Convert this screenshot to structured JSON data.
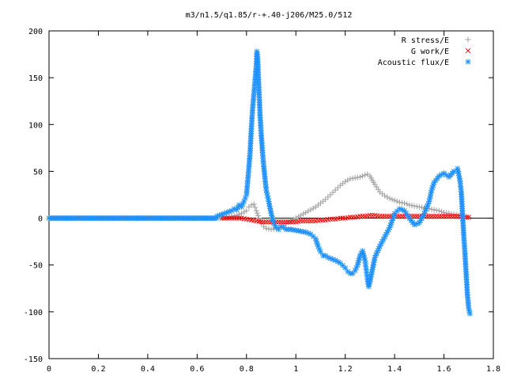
{
  "chart_data": {
    "type": "scatter",
    "title": "m3/n1.5/q1.85/r-+.40-j206/M25.0/512",
    "xlabel": "",
    "ylabel": "",
    "xlim": [
      0,
      1.8
    ],
    "ylim": [
      -150,
      200
    ],
    "x_ticks": [
      0,
      0.2,
      0.4,
      0.6,
      0.8,
      1,
      1.2,
      1.4,
      1.6,
      1.8
    ],
    "x_tick_labels": [
      "0",
      "0.2",
      "0.4",
      "0.6",
      "0.8",
      "1",
      "1.2",
      "1.4",
      "1.6",
      "1.8"
    ],
    "y_ticks": [
      -150,
      -100,
      -50,
      0,
      50,
      100,
      150,
      200
    ],
    "y_tick_labels": [
      "-150",
      "-100",
      "-50",
      "0",
      "50",
      "100",
      "150",
      "200"
    ],
    "grid": false,
    "legend_position": "top-right",
    "series": [
      {
        "name": "R stress/E",
        "marker": "plus",
        "color": "#a0a0a0",
        "points": [
          [
            0.7,
            0
          ],
          [
            0.72,
            1
          ],
          [
            0.74,
            2
          ],
          [
            0.76,
            3
          ],
          [
            0.78,
            5
          ],
          [
            0.8,
            8
          ],
          [
            0.81,
            12
          ],
          [
            0.82,
            14
          ],
          [
            0.83,
            15
          ],
          [
            0.84,
            8
          ],
          [
            0.85,
            0
          ],
          [
            0.86,
            -5
          ],
          [
            0.87,
            -9
          ],
          [
            0.88,
            -11
          ],
          [
            0.9,
            -12
          ],
          [
            0.92,
            -11
          ],
          [
            0.94,
            -9
          ],
          [
            0.96,
            -6
          ],
          [
            0.98,
            -3
          ],
          [
            1.0,
            0
          ],
          [
            1.02,
            3
          ],
          [
            1.04,
            6
          ],
          [
            1.06,
            9
          ],
          [
            1.08,
            12
          ],
          [
            1.1,
            16
          ],
          [
            1.12,
            20
          ],
          [
            1.14,
            25
          ],
          [
            1.16,
            30
          ],
          [
            1.18,
            35
          ],
          [
            1.2,
            39
          ],
          [
            1.22,
            42
          ],
          [
            1.24,
            43
          ],
          [
            1.26,
            44
          ],
          [
            1.28,
            46
          ],
          [
            1.29,
            47
          ],
          [
            1.3,
            45
          ],
          [
            1.32,
            36
          ],
          [
            1.34,
            28
          ],
          [
            1.36,
            24
          ],
          [
            1.38,
            21
          ],
          [
            1.4,
            19
          ],
          [
            1.42,
            17
          ],
          [
            1.44,
            16
          ],
          [
            1.46,
            14
          ],
          [
            1.48,
            13
          ],
          [
            1.5,
            12
          ],
          [
            1.52,
            11
          ],
          [
            1.54,
            10
          ],
          [
            1.56,
            9
          ],
          [
            1.58,
            8
          ],
          [
            1.6,
            6
          ],
          [
            1.62,
            5
          ],
          [
            1.64,
            4
          ],
          [
            1.66,
            3
          ],
          [
            1.68,
            2
          ],
          [
            1.7,
            1
          ]
        ]
      },
      {
        "name": "G work/E",
        "marker": "cross",
        "color": "#ff0000",
        "points": [
          [
            0.7,
            0
          ],
          [
            0.72,
            0
          ],
          [
            0.74,
            0
          ],
          [
            0.76,
            0
          ],
          [
            0.78,
            0
          ],
          [
            0.8,
            -1
          ],
          [
            0.82,
            -2
          ],
          [
            0.84,
            -3
          ],
          [
            0.86,
            -4
          ],
          [
            0.88,
            -4
          ],
          [
            0.9,
            -4
          ],
          [
            0.92,
            -4
          ],
          [
            0.94,
            -4
          ],
          [
            0.96,
            -4
          ],
          [
            0.98,
            -4
          ],
          [
            1.0,
            -4
          ],
          [
            1.02,
            -3
          ],
          [
            1.04,
            -3
          ],
          [
            1.06,
            -3
          ],
          [
            1.08,
            -3
          ],
          [
            1.1,
            -2
          ],
          [
            1.12,
            -2
          ],
          [
            1.14,
            -1
          ],
          [
            1.16,
            -1
          ],
          [
            1.18,
            0
          ],
          [
            1.2,
            0
          ],
          [
            1.22,
            1
          ],
          [
            1.24,
            1
          ],
          [
            1.26,
            2
          ],
          [
            1.28,
            2
          ],
          [
            1.3,
            3
          ],
          [
            1.32,
            3
          ],
          [
            1.34,
            2
          ],
          [
            1.36,
            2
          ],
          [
            1.38,
            2
          ],
          [
            1.4,
            2
          ],
          [
            1.42,
            2
          ],
          [
            1.44,
            2
          ],
          [
            1.46,
            2
          ],
          [
            1.48,
            2
          ],
          [
            1.5,
            2
          ],
          [
            1.52,
            2
          ],
          [
            1.54,
            2
          ],
          [
            1.56,
            2
          ],
          [
            1.58,
            2
          ],
          [
            1.6,
            2
          ],
          [
            1.62,
            2
          ],
          [
            1.64,
            2
          ],
          [
            1.66,
            2
          ],
          [
            1.68,
            1
          ],
          [
            1.7,
            1
          ]
        ]
      },
      {
        "name": "Acoustic flux/E",
        "marker": "star",
        "color": "#1e90ff",
        "points": [
          [
            0.68,
            2
          ],
          [
            0.7,
            4
          ],
          [
            0.72,
            6
          ],
          [
            0.74,
            8
          ],
          [
            0.75,
            10
          ],
          [
            0.76,
            9
          ],
          [
            0.77,
            14
          ],
          [
            0.78,
            12
          ],
          [
            0.79,
            18
          ],
          [
            0.8,
            25
          ],
          [
            0.805,
            40
          ],
          [
            0.81,
            55
          ],
          [
            0.815,
            72
          ],
          [
            0.82,
            98
          ],
          [
            0.825,
            118
          ],
          [
            0.83,
            133
          ],
          [
            0.835,
            148
          ],
          [
            0.84,
            165
          ],
          [
            0.842,
            178
          ],
          [
            0.845,
            172
          ],
          [
            0.85,
            140
          ],
          [
            0.855,
            110
          ],
          [
            0.86,
            88
          ],
          [
            0.865,
            70
          ],
          [
            0.87,
            55
          ],
          [
            0.875,
            42
          ],
          [
            0.88,
            30
          ],
          [
            0.89,
            18
          ],
          [
            0.9,
            5
          ],
          [
            0.91,
            -5
          ],
          [
            0.92,
            -10
          ],
          [
            0.93,
            -12
          ],
          [
            0.94,
            -9
          ],
          [
            0.95,
            -10
          ],
          [
            0.96,
            -12
          ],
          [
            0.98,
            -12
          ],
          [
            1.0,
            -13
          ],
          [
            1.02,
            -14
          ],
          [
            1.04,
            -15
          ],
          [
            1.06,
            -17
          ],
          [
            1.08,
            -22
          ],
          [
            1.09,
            -30
          ],
          [
            1.1,
            -36
          ],
          [
            1.11,
            -40
          ],
          [
            1.12,
            -40
          ],
          [
            1.13,
            -42
          ],
          [
            1.14,
            -43
          ],
          [
            1.16,
            -45
          ],
          [
            1.18,
            -48
          ],
          [
            1.2,
            -53
          ],
          [
            1.21,
            -57
          ],
          [
            1.22,
            -59
          ],
          [
            1.23,
            -59
          ],
          [
            1.24,
            -56
          ],
          [
            1.25,
            -50
          ],
          [
            1.26,
            -40
          ],
          [
            1.27,
            -35
          ],
          [
            1.28,
            -45
          ],
          [
            1.285,
            -55
          ],
          [
            1.29,
            -65
          ],
          [
            1.295,
            -73
          ],
          [
            1.3,
            -68
          ],
          [
            1.31,
            -55
          ],
          [
            1.32,
            -42
          ],
          [
            1.34,
            -30
          ],
          [
            1.36,
            -20
          ],
          [
            1.38,
            -10
          ],
          [
            1.4,
            5
          ],
          [
            1.42,
            10
          ],
          [
            1.44,
            8
          ],
          [
            1.46,
            0
          ],
          [
            1.48,
            -7
          ],
          [
            1.5,
            -5
          ],
          [
            1.52,
            5
          ],
          [
            1.54,
            18
          ],
          [
            1.55,
            30
          ],
          [
            1.56,
            38
          ],
          [
            1.58,
            45
          ],
          [
            1.6,
            48
          ],
          [
            1.62,
            44
          ],
          [
            1.64,
            50
          ],
          [
            1.655,
            53
          ],
          [
            1.665,
            40
          ],
          [
            1.67,
            28
          ],
          [
            1.675,
            5
          ],
          [
            1.68,
            -18
          ],
          [
            1.685,
            -38
          ],
          [
            1.69,
            -60
          ],
          [
            1.695,
            -82
          ],
          [
            1.7,
            -96
          ],
          [
            1.705,
            -102
          ]
        ]
      }
    ]
  }
}
